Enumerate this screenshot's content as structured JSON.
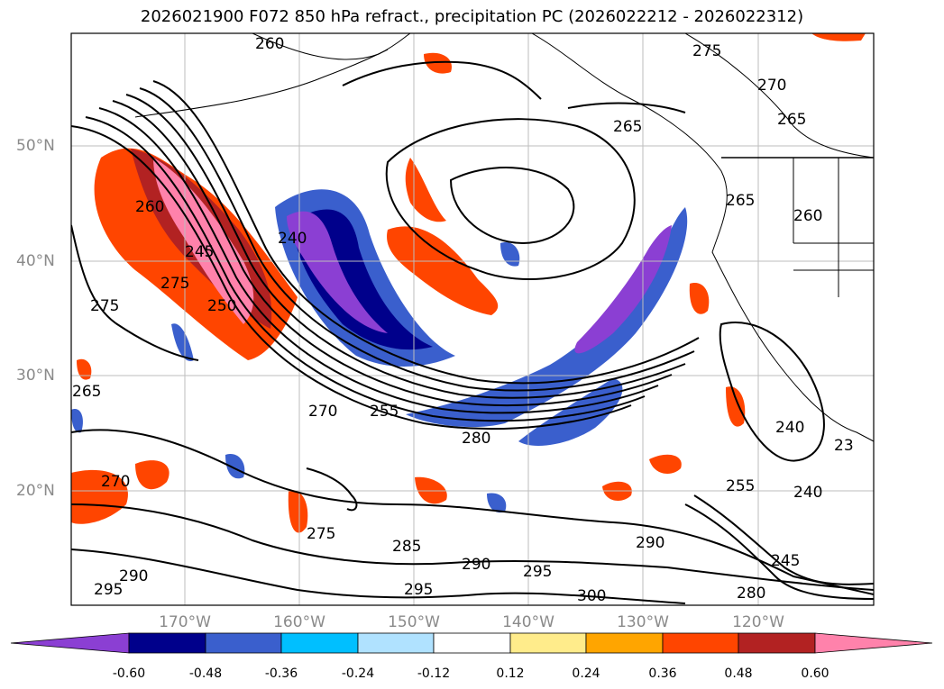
{
  "title": "2026021900 F072 850 hPa refract., precipitation PC (2026022212 - 2026022312)",
  "map": {
    "lat_labels": [
      "50°N",
      "40°N",
      "30°N",
      "20°N"
    ],
    "lon_labels": [
      "170°W",
      "160°W",
      "150°W",
      "140°W",
      "130°W",
      "120°W"
    ],
    "contour_labels": [
      "260",
      "275",
      "270",
      "265",
      "265",
      "265",
      "260",
      "245",
      "275",
      "250",
      "240",
      "275",
      "265",
      "260",
      "270",
      "255",
      "280",
      "240",
      "23",
      "270",
      "255",
      "240",
      "275",
      "285",
      "290",
      "295",
      "290",
      "290",
      "295",
      "300",
      "245",
      "280",
      "295"
    ]
  },
  "colorbar": {
    "ticks": [
      "-0.60",
      "-0.48",
      "-0.36",
      "-0.24",
      "-0.12",
      "0.12",
      "0.24",
      "0.36",
      "0.48",
      "0.60"
    ],
    "colors": [
      "#8b3fd3",
      "#00008b",
      "#3a5fcd",
      "#00bfff",
      "#b0e2ff",
      "#ffffff",
      "#ffec8b",
      "#ffa500",
      "#ff4500",
      "#b22222",
      "#ff82ab"
    ]
  }
}
